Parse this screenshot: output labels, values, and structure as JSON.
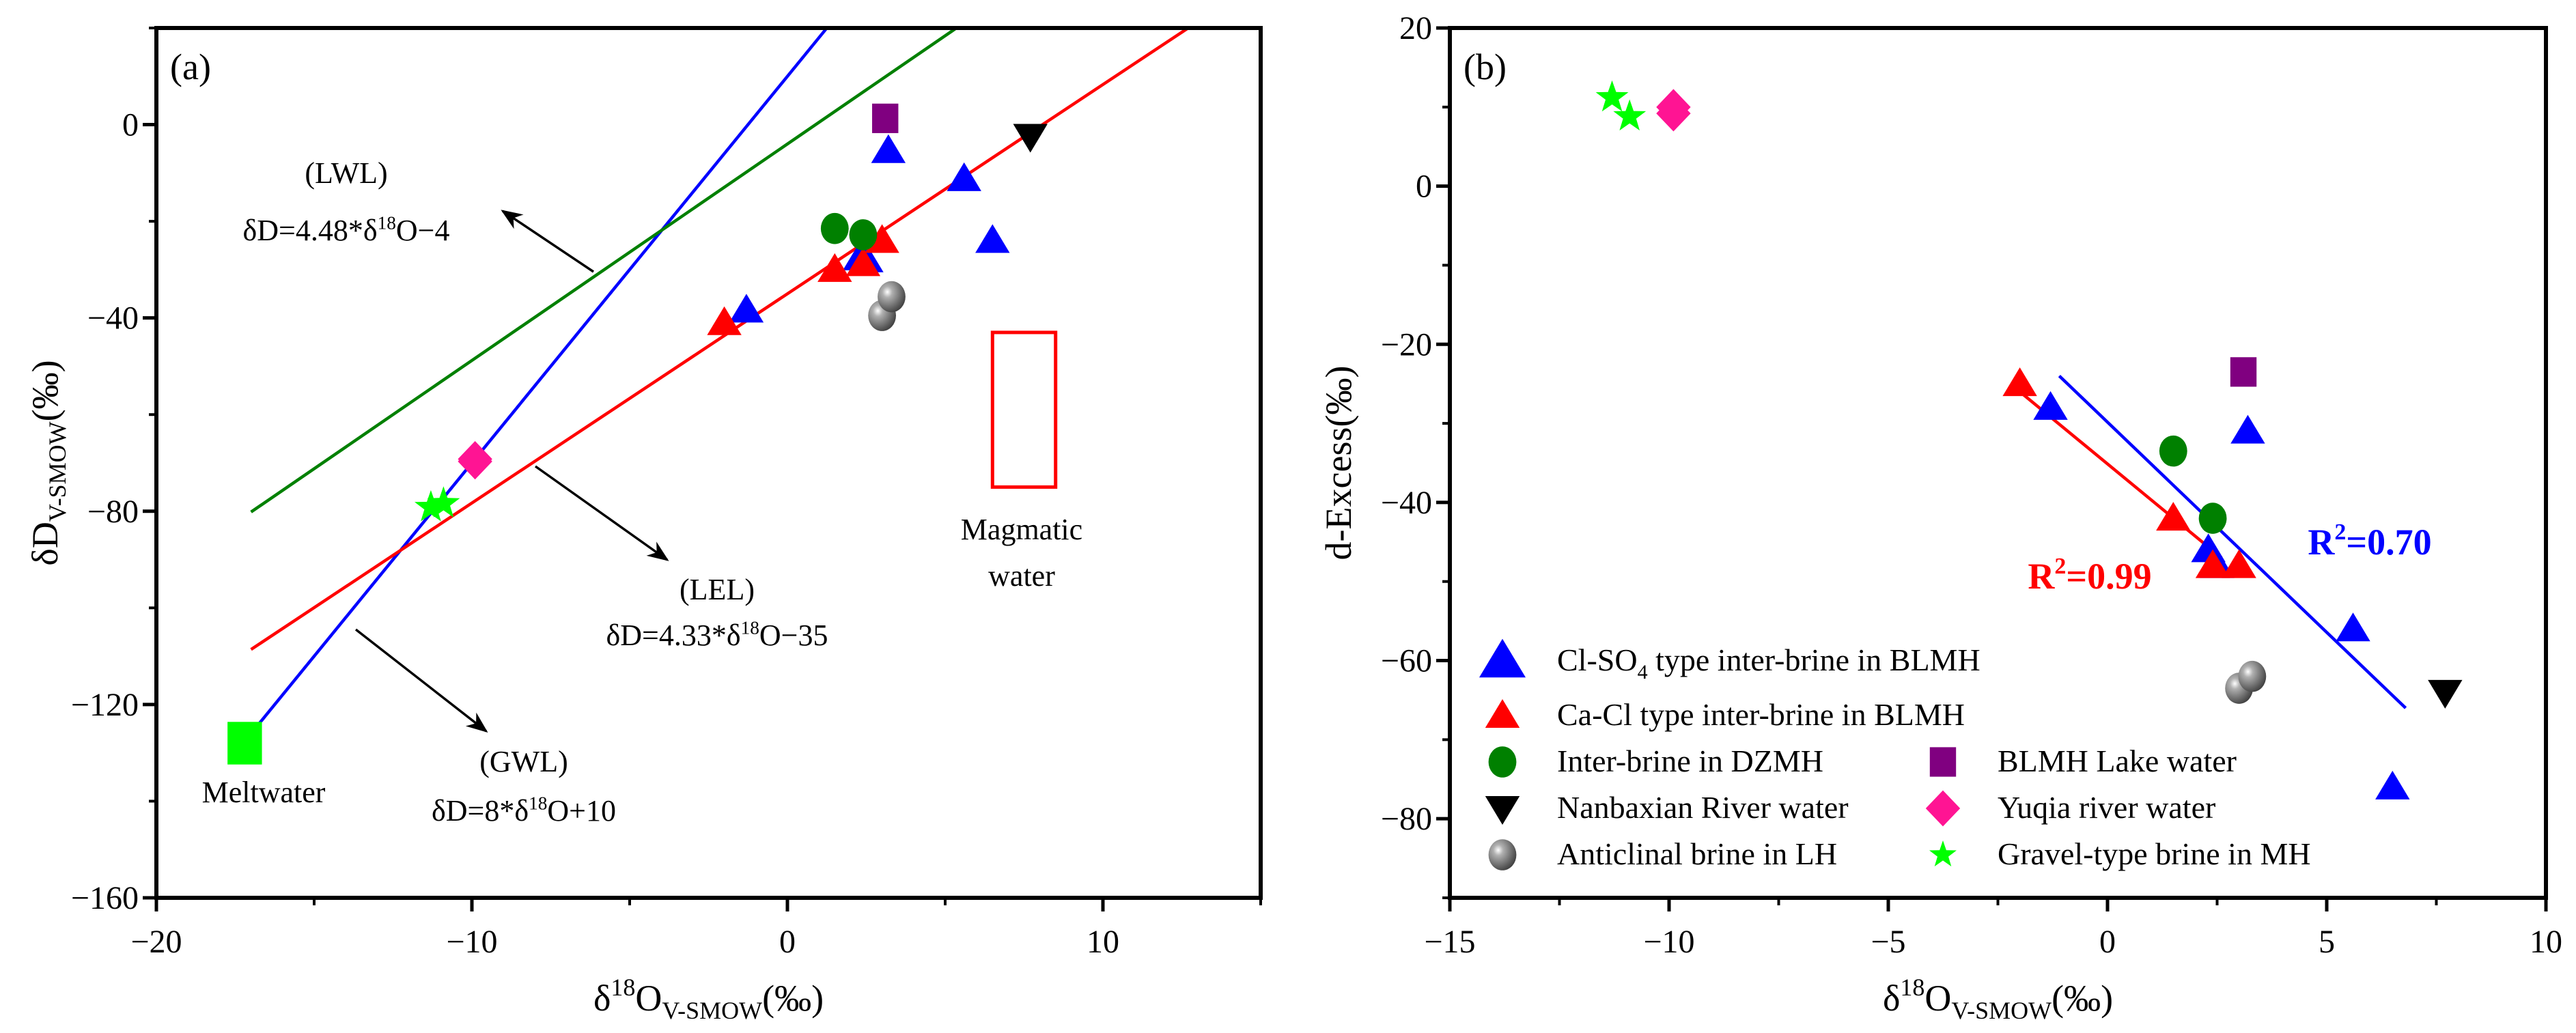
{
  "chart_data": [
    {
      "id": "a",
      "type": "scatter",
      "panel_label": "(a)",
      "xlabel": {
        "main": "δ",
        "sup": "18",
        "mid": "O",
        "sub": "V-SMOW",
        "unit": "(‰)"
      },
      "ylabel": {
        "main": "δD",
        "sub": "V-SMOW",
        "unit": "(‰)"
      },
      "xlim": [
        -20,
        15
      ],
      "ylim": [
        -160,
        20
      ],
      "xticks": [
        -20,
        -10,
        0,
        10
      ],
      "xminor": [
        -15,
        -5,
        5,
        15
      ],
      "yticks": [
        -160,
        -120,
        -80,
        -40,
        0
      ],
      "yminor": [
        -140,
        -100,
        -60,
        -20,
        20
      ],
      "xtick_labels": [
        "−20",
        "−10",
        "0",
        "10"
      ],
      "ytick_labels": [
        "−160",
        "−120",
        "−80",
        "−40",
        "0"
      ],
      "grid": false,
      "series": [
        {
          "name": "Cl-SO4 type inter-brine in BLMH",
          "marker": "triangle-up",
          "color": "#0000ff",
          "points": [
            [
              3.2,
              -5.4
            ],
            [
              5.6,
              -11.2
            ],
            [
              6.5,
              -24
            ],
            [
              2.3,
              -27.6
            ],
            [
              2.5,
              -28
            ],
            [
              -1.3,
              -38.4
            ]
          ]
        },
        {
          "name": "Ca-Cl type inter-brine in BLMH",
          "marker": "triangle-up",
          "color": "#ff0000",
          "points": [
            [
              -2,
              -41
            ],
            [
              1.5,
              -30
            ],
            [
              2.4,
              -28.8
            ],
            [
              3,
              -24
            ]
          ]
        },
        {
          "name": "Inter-brine in DZMH",
          "marker": "circle",
          "color": "#008000",
          "points": [
            [
              1.5,
              -21.5
            ],
            [
              2.4,
              -22.8
            ]
          ]
        },
        {
          "name": "BLMH Lake water",
          "marker": "square",
          "color": "#800080",
          "points": [
            [
              3.1,
              1.3
            ]
          ]
        },
        {
          "name": "Nanbaxian River water",
          "marker": "triangle-down",
          "color": "#000000",
          "points": [
            [
              7.7,
              -2.4
            ]
          ]
        },
        {
          "name": "Yuqia river water",
          "marker": "diamond",
          "color": "#ff1493",
          "points": [
            [
              -9.9,
              -69.7
            ],
            [
              -9.9,
              -69.2
            ]
          ]
        },
        {
          "name": "Anticlinal brine in LH",
          "marker": "sphere",
          "color": "#808080",
          "points": [
            [
              3.0,
              -39.5
            ],
            [
              3.3,
              -35.6
            ]
          ]
        },
        {
          "name": "Gravel-type brine in MH",
          "marker": "star",
          "color": "#00ff00",
          "points": [
            [
              -11.3,
              -79.2
            ],
            [
              -10.9,
              -78.4
            ]
          ]
        },
        {
          "name": "Meltwater",
          "marker": "big-square",
          "color": "#00ff00",
          "points": [
            [
              -17.2,
              -128
            ]
          ]
        }
      ],
      "lines": [
        {
          "name": "GWL",
          "slope": 8,
          "intercept": 10,
          "x_range": [
            -17,
            1.25
          ],
          "color": "#0000ff"
        },
        {
          "name": "LWL",
          "slope": 4.48,
          "intercept": -4,
          "x_range": [
            -17,
            5.36
          ],
          "color": "#008000"
        },
        {
          "name": "LEL",
          "slope": 4.33,
          "intercept": -35,
          "x_range": [
            -17,
            12.7
          ],
          "color": "#ff0000"
        }
      ],
      "regions": [
        {
          "name": "Magmatic water",
          "x_range": [
            6.5,
            8.5
          ],
          "y_range": [
            -75,
            -43
          ],
          "color": "#ff0000"
        }
      ],
      "annotations": {
        "lwl_name": "(LWL)",
        "lwl_eq": "δD=4.48*δ18O−4",
        "lel_name": "(LEL)",
        "lel_eq": "δD=4.33*δ18O−35",
        "gwl_name": "(GWL)",
        "gwl_eq": "δD=8*δ18O+10",
        "meltwater": "Meltwater",
        "magmatic_1": "Magmatic",
        "magmatic_2": "water"
      }
    },
    {
      "id": "b",
      "type": "scatter",
      "panel_label": "(b)",
      "xlabel": {
        "main": "δ",
        "sup": "18",
        "mid": "O",
        "sub": "V-SMOW",
        "unit": "(‰)"
      },
      "ylabel": {
        "main": "d-Excess(‰)"
      },
      "xlim": [
        -15,
        10
      ],
      "ylim": [
        -90,
        20
      ],
      "xticks": [
        -15,
        -10,
        -5,
        0,
        5,
        10
      ],
      "xminor": [
        -12.5,
        -7.5,
        -2.5,
        2.5,
        7.5
      ],
      "yticks": [
        -80,
        -60,
        -40,
        -20,
        0,
        20
      ],
      "yminor": [
        -90,
        -70,
        -50,
        -30,
        -10,
        10
      ],
      "xtick_labels": [
        "−15",
        "−10",
        "−5",
        "0",
        "5",
        "10"
      ],
      "ytick_labels": [
        "−80",
        "−60",
        "−40",
        "−20",
        "0",
        "20"
      ],
      "grid": false,
      "series": [
        {
          "name": "Cl-SO4 type inter-brine in BLMH",
          "marker": "triangle-up",
          "color": "#0000ff",
          "points": [
            [
              -1.3,
              -28
            ],
            [
              3.2,
              -31
            ],
            [
              2.3,
              -46
            ],
            [
              2.5,
              -48
            ],
            [
              5.6,
              -56
            ],
            [
              6.5,
              -76
            ]
          ]
        },
        {
          "name": "Ca-Cl type inter-brine in BLMH",
          "marker": "triangle-up",
          "color": "#ff0000",
          "points": [
            [
              -2,
              -25
            ],
            [
              1.5,
              -42
            ],
            [
              2.4,
              -48
            ],
            [
              3,
              -48
            ]
          ]
        },
        {
          "name": "Inter-brine in DZMH",
          "marker": "circle",
          "color": "#008000",
          "points": [
            [
              1.5,
              -33.5
            ],
            [
              2.4,
              -42
            ]
          ]
        },
        {
          "name": "BLMH Lake water",
          "marker": "square",
          "color": "#800080",
          "points": [
            [
              3.1,
              -23.5
            ]
          ]
        },
        {
          "name": "Nanbaxian River water",
          "marker": "triangle-down",
          "color": "#000000",
          "points": [
            [
              7.7,
              -64
            ]
          ]
        },
        {
          "name": "Yuqia river water",
          "marker": "diamond",
          "color": "#ff1493",
          "points": [
            [
              -9.9,
              9.2
            ],
            [
              -9.9,
              10
            ]
          ]
        },
        {
          "name": "Anticlinal brine in LH",
          "marker": "sphere",
          "color": "#808080",
          "points": [
            [
              3.0,
              -63.5
            ],
            [
              3.3,
              -62
            ]
          ]
        },
        {
          "name": "Gravel-type brine in MH",
          "marker": "star",
          "color": "#00ff00",
          "points": [
            [
              -11.3,
              11.2
            ],
            [
              -10.9,
              8.8
            ]
          ]
        }
      ],
      "lines": [
        {
          "name": "Ca-Cl fit",
          "points": [
            [
              -2,
              -26
            ],
            [
              2.6,
              -47
            ]
          ],
          "color": "#ff0000",
          "r2": {
            "base": "R",
            "sup": "2",
            "rest": "=0.99"
          }
        },
        {
          "name": "Cl-SO4 fit",
          "points": [
            [
              -1.1,
              -24
            ],
            [
              6.8,
              -66
            ]
          ],
          "color": "#0000ff",
          "r2": {
            "base": "R",
            "sup": "2",
            "rest": "=0.70"
          }
        }
      ],
      "legend": {
        "placement": "bottom-left",
        "items": [
          {
            "parts": [
              "Cl-SO",
              "4",
              " type inter-brine in BLMH"
            ],
            "marker": "triangle-up-big",
            "color": "#0000ff"
          },
          {
            "parts": [
              "Ca-Cl type  inter-brine in BLMH"
            ],
            "marker": "triangle-up",
            "color": "#ff0000"
          },
          {
            "parts": [
              "Inter-brine in DZMH"
            ],
            "marker": "circle",
            "color": "#008000"
          },
          {
            "parts": [
              "BLMH Lake water"
            ],
            "marker": "square",
            "color": "#800080"
          },
          {
            "parts": [
              "Nanbaxian River water"
            ],
            "marker": "triangle-down",
            "color": "#000000"
          },
          {
            "parts": [
              "Yuqia river water"
            ],
            "marker": "diamond",
            "color": "#ff1493"
          },
          {
            "parts": [
              "Anticlinal brine in LH"
            ],
            "marker": "sphere",
            "color": "#808080"
          },
          {
            "parts": [
              "Gravel-type brine in MH"
            ],
            "marker": "star",
            "color": "#00ff00"
          }
        ]
      }
    }
  ]
}
